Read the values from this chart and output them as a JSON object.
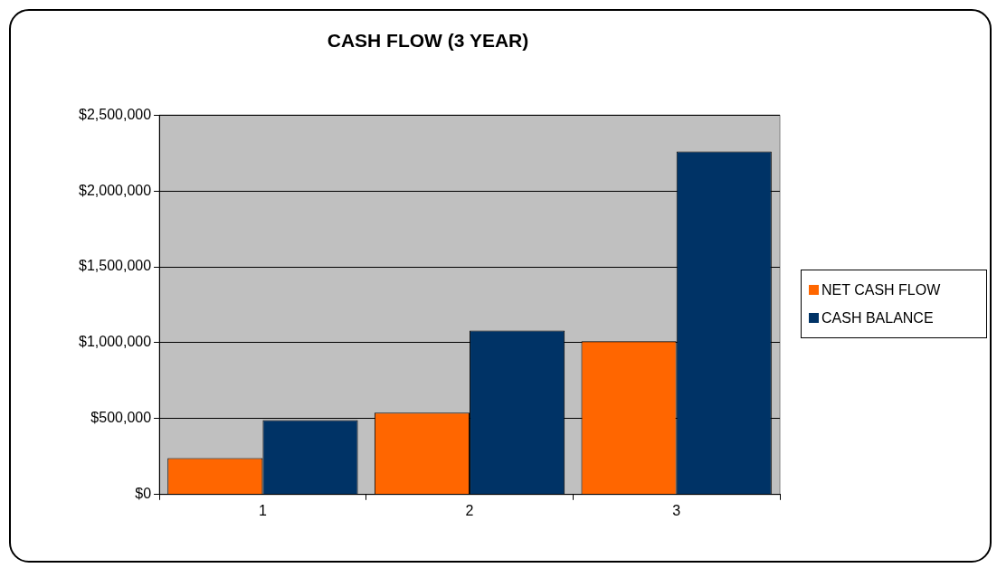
{
  "chart_data": {
    "type": "bar",
    "title": "CASH FLOW (3 YEAR)",
    "categories": [
      "1",
      "2",
      "3"
    ],
    "series": [
      {
        "name": "NET CASH FLOW",
        "color": "#ff6600",
        "values": [
          240000,
          540000,
          1010000
        ]
      },
      {
        "name": "CASH BALANCE",
        "color": "#003366",
        "values": [
          490000,
          1080000,
          2260000
        ]
      }
    ],
    "ylim": [
      0,
      2500000
    ],
    "yticks": [
      {
        "value": 0,
        "label": "$0"
      },
      {
        "value": 500000,
        "label": "$500,000"
      },
      {
        "value": 1000000,
        "label": "$1,000,000"
      },
      {
        "value": 1500000,
        "label": "$1,500,000"
      },
      {
        "value": 2000000,
        "label": "$2,000,000"
      },
      {
        "value": 2500000,
        "label": "$2,500,000"
      }
    ],
    "grid": "y",
    "legend": "right"
  }
}
